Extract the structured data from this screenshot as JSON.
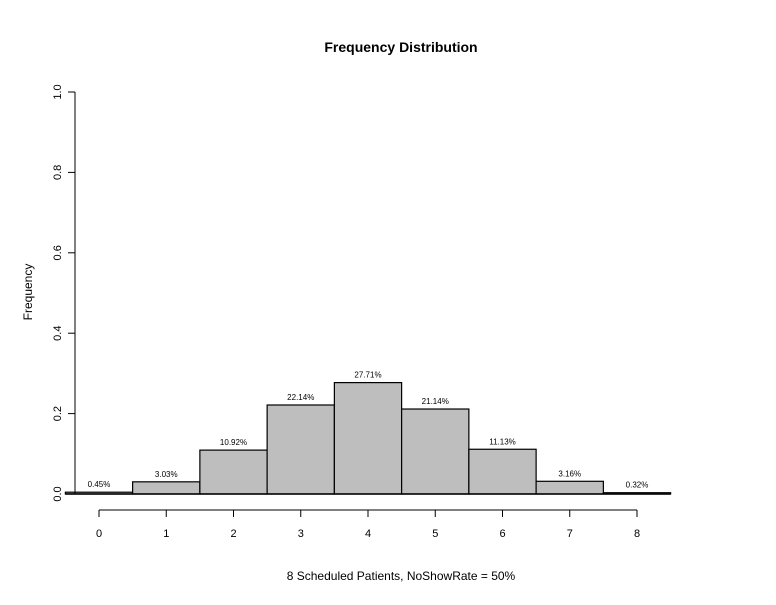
{
  "chart_data": {
    "type": "bar",
    "title": "Frequency Distribution",
    "xlabel": "8 Scheduled Patients,  NoShowRate = 50%",
    "ylabel": "Frequency",
    "categories": [
      0,
      1,
      2,
      3,
      4,
      5,
      6,
      7,
      8
    ],
    "values": [
      0.0045,
      0.0303,
      0.1092,
      0.2214,
      0.2771,
      0.2114,
      0.1113,
      0.0316,
      0.0032
    ],
    "data_labels": [
      "0.45%",
      "3.03%",
      "10.92%",
      "22.14%",
      "27.71%",
      "21.14%",
      "11.13%",
      "3.16%",
      "0.32%"
    ],
    "x_ticks": [
      "0",
      "1",
      "2",
      "3",
      "4",
      "5",
      "6",
      "7",
      "8"
    ],
    "y_ticks": [
      "0.0",
      "0.2",
      "0.4",
      "0.6",
      "0.8",
      "1.0"
    ],
    "ylim": [
      0,
      1
    ],
    "xlim": [
      -0.5,
      8.5
    ],
    "grid": false,
    "bar_color": "#bebebe",
    "edge_color": "#000000"
  }
}
